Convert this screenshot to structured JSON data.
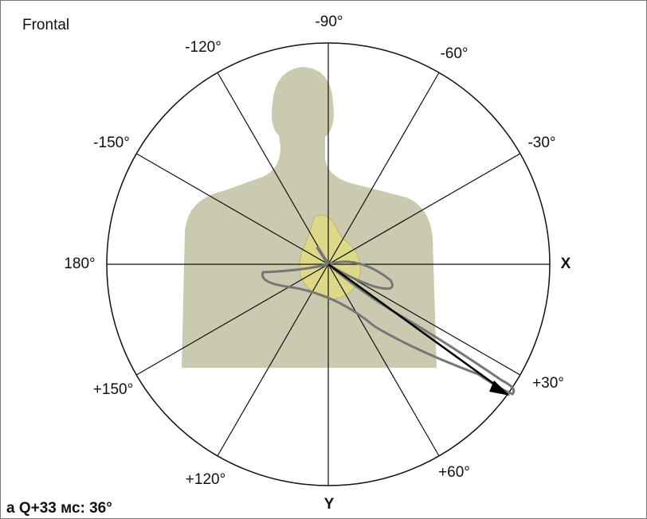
{
  "header": {
    "title": "Frontal"
  },
  "axis_labels": [
    "-90°",
    "-60°",
    "-30°",
    "X",
    "+30°",
    "+60°",
    "Y",
    "+120°",
    "+150°",
    "180°",
    "-150°",
    "-120°"
  ],
  "footer": {
    "caption": "a Q+33 мс: 36°"
  }
}
